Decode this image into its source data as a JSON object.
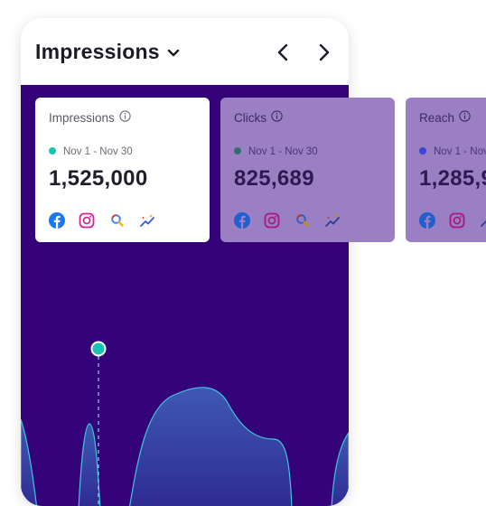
{
  "header": {
    "title": "Impressions"
  },
  "metrics": [
    {
      "label": "Impressions",
      "range": "Nov 1 - Nov 30",
      "value": "1,525,000",
      "dot_color": "#17c4b4",
      "selected": true
    },
    {
      "label": "Clicks",
      "range": "Nov 1 - Nov 30",
      "value": "825,689",
      "dot_color": "#2f6f74",
      "selected": false
    },
    {
      "label": "Reach",
      "range": "Nov 1 - Nov",
      "value": "1,285,9",
      "dot_color": "#3e44d8",
      "selected": false
    }
  ],
  "colors": {
    "panel": "#34037a",
    "accent": "#17c4b4",
    "facebook": "#1877f2",
    "instagram": "#d6249f"
  },
  "icons": [
    "facebook-icon",
    "instagram-icon",
    "search-icon",
    "sparkle-trend-icon"
  ]
}
